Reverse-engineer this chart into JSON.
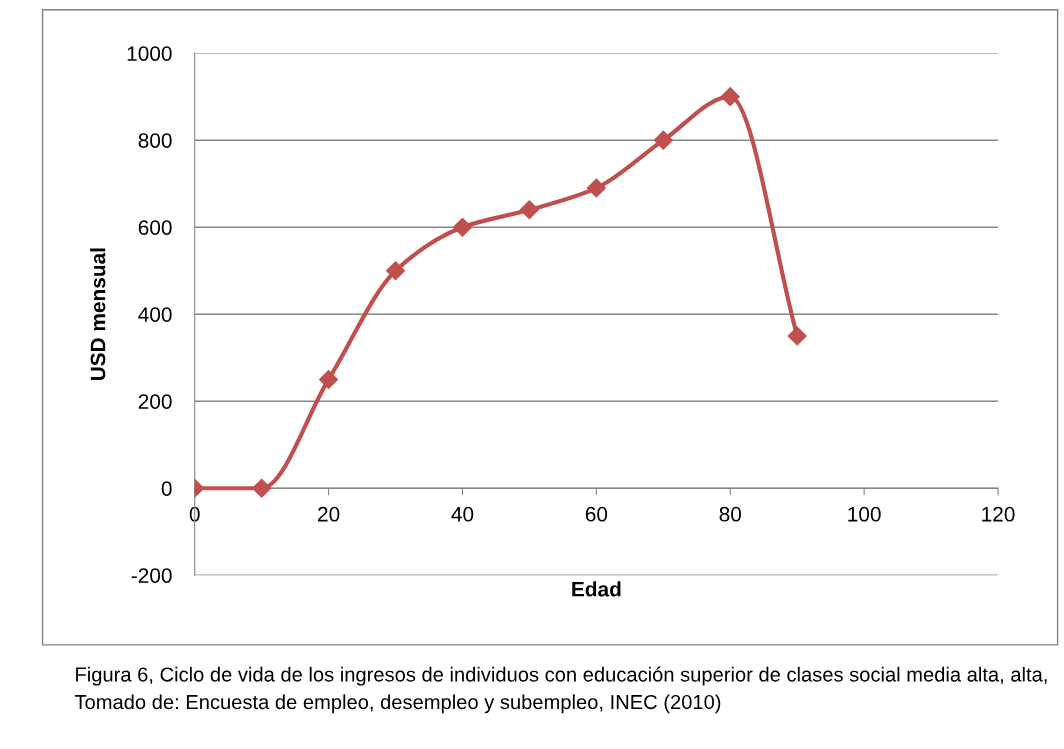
{
  "chart_data": {
    "type": "line",
    "xlabel": "Edad",
    "ylabel": "USD mensual",
    "x": [
      0,
      10,
      20,
      30,
      40,
      50,
      60,
      70,
      80,
      90
    ],
    "series": [
      {
        "color": "#c0504d",
        "values": [
          0,
          0,
          250,
          500,
          600,
          640,
          690,
          800,
          900,
          350
        ]
      }
    ],
    "xlim": [
      0,
      120
    ],
    "xticks": [
      0,
      20,
      40,
      60,
      80,
      100,
      120
    ],
    "ylim": [
      -200,
      1000
    ],
    "yticks": [
      -200,
      0,
      200,
      400,
      600,
      800,
      1000
    ],
    "grid": "y",
    "marker": "diamond",
    "line_style": "solid",
    "annotations": [
      "Figura 6, Ciclo de vida de los ingresos de individuos con educación superior de clases social media alta, alta, Tomado de: Encuesta de empleo, desempleo y subempleo, INEC (2010)"
    ]
  }
}
